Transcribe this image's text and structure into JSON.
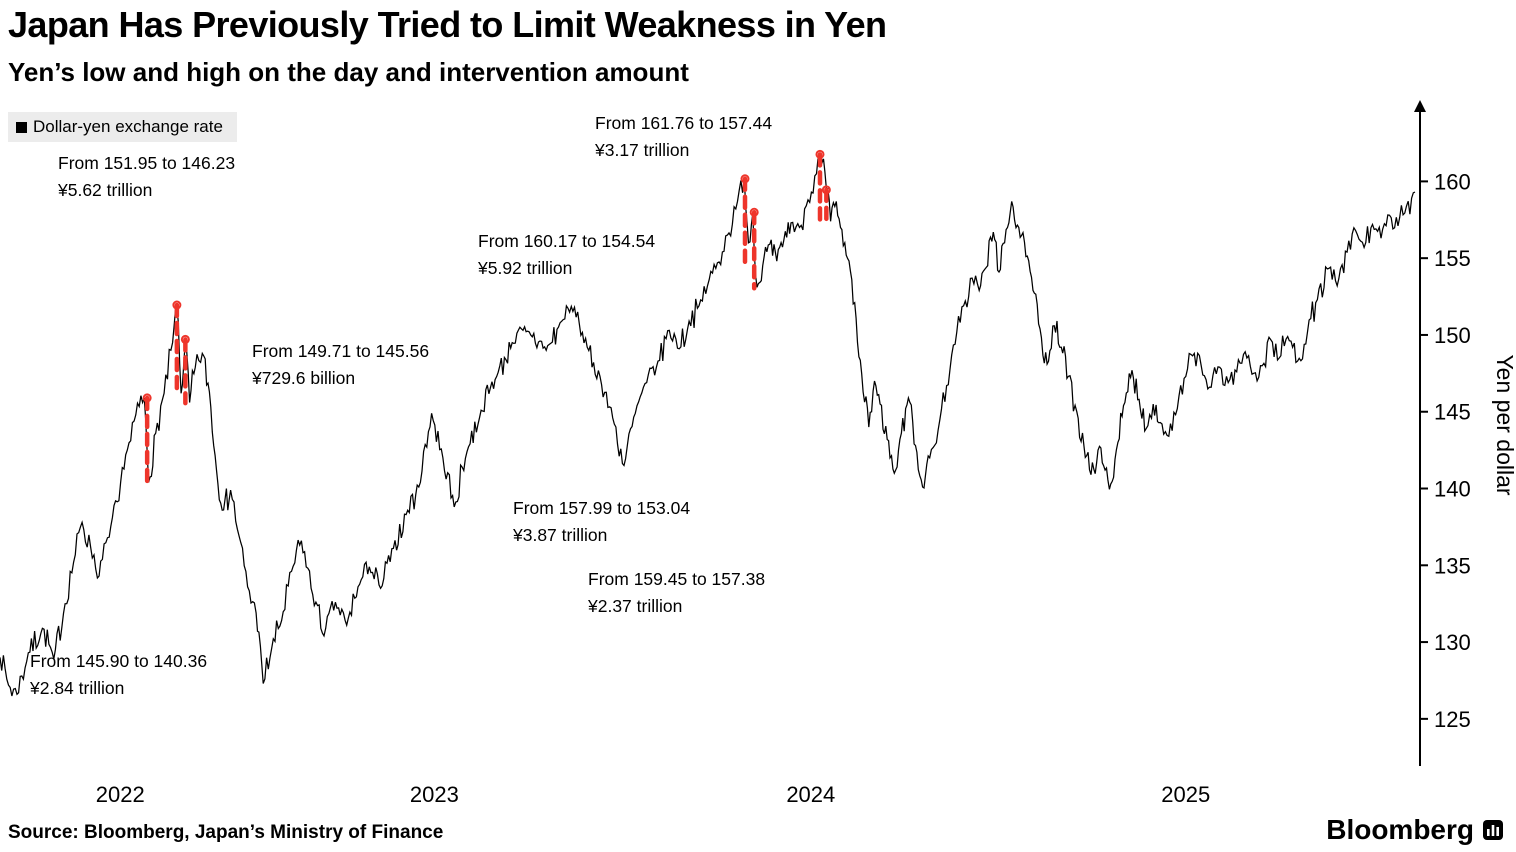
{
  "header": {
    "title": "Japan Has Previously Tried to Limit Weakness in Yen",
    "subtitle": "Yen’s low and high on the day and intervention amount"
  },
  "legend": {
    "label": "Dollar-yen exchange rate",
    "marker_color": "#000000"
  },
  "footer": {
    "source": "Source: Bloomberg, Japan’s Ministry of Finance",
    "brand": "Bloomberg"
  },
  "chart_data": {
    "type": "line",
    "title": "Japan Has Previously Tried to Limit Weakness in Yen",
    "subtitle": "Yen’s low and high on the day and intervention amount",
    "ylabel": "Yen per dollar",
    "ylim": [
      121.8,
      165.3
    ],
    "yticks": [
      125,
      130,
      135,
      140,
      145,
      150,
      155,
      160
    ],
    "xticks": [
      {
        "label": "2022",
        "f": 0.085
      },
      {
        "label": "2023",
        "f": 0.307
      },
      {
        "label": "2024",
        "f": 0.573
      },
      {
        "label": "2025",
        "f": 0.838
      }
    ],
    "grid": false,
    "legend_position": "top-left",
    "line_color": "#000000",
    "intervention_color": "#ee352b",
    "series": [
      {
        "name": "Dollar-yen exchange rate",
        "color": "#000000",
        "points": [
          [
            0,
            129.0
          ],
          [
            0.006,
            127.2
          ],
          [
            0.012,
            126.6
          ],
          [
            0.02,
            129.3
          ],
          [
            0.03,
            130.9
          ],
          [
            0.038,
            128.9
          ],
          [
            0.046,
            132.5
          ],
          [
            0.052,
            135.2
          ],
          [
            0.058,
            137.8
          ],
          [
            0.064,
            136.2
          ],
          [
            0.07,
            134.3
          ],
          [
            0.076,
            136.8
          ],
          [
            0.084,
            139.2
          ],
          [
            0.09,
            142.5
          ],
          [
            0.096,
            144.8
          ],
          [
            0.102,
            145.9
          ],
          [
            0.105,
            140.4
          ],
          [
            0.11,
            143.6
          ],
          [
            0.116,
            146.2
          ],
          [
            0.122,
            149.5
          ],
          [
            0.125,
            151.9
          ],
          [
            0.128,
            146.2
          ],
          [
            0.131,
            149.7
          ],
          [
            0.134,
            145.6
          ],
          [
            0.138,
            147.9
          ],
          [
            0.143,
            148.8
          ],
          [
            0.148,
            146.3
          ],
          [
            0.153,
            141.2
          ],
          [
            0.158,
            138.6
          ],
          [
            0.163,
            139.9
          ],
          [
            0.169,
            136.9
          ],
          [
            0.175,
            133.6
          ],
          [
            0.181,
            131.9
          ],
          [
            0.186,
            127.3
          ],
          [
            0.192,
            129.6
          ],
          [
            0.199,
            131.4
          ],
          [
            0.206,
            134.6
          ],
          [
            0.213,
            136.6
          ],
          [
            0.221,
            133.1
          ],
          [
            0.229,
            130.4
          ],
          [
            0.237,
            132.6
          ],
          [
            0.245,
            131.1
          ],
          [
            0.253,
            133.6
          ],
          [
            0.261,
            134.9
          ],
          [
            0.269,
            133.5
          ],
          [
            0.278,
            136.1
          ],
          [
            0.287,
            138.3
          ],
          [
            0.296,
            140.1
          ],
          [
            0.305,
            144.9
          ],
          [
            0.313,
            142.0
          ],
          [
            0.321,
            138.8
          ],
          [
            0.33,
            142.4
          ],
          [
            0.34,
            145.1
          ],
          [
            0.351,
            147.3
          ],
          [
            0.362,
            149.5
          ],
          [
            0.374,
            150.2
          ],
          [
            0.386,
            149.0
          ],
          [
            0.398,
            151.0
          ],
          [
            0.406,
            151.8
          ],
          [
            0.415,
            149.2
          ],
          [
            0.424,
            147.3
          ],
          [
            0.433,
            144.6
          ],
          [
            0.441,
            141.5
          ],
          [
            0.449,
            144.9
          ],
          [
            0.457,
            146.9
          ],
          [
            0.465,
            148.3
          ],
          [
            0.473,
            150.3
          ],
          [
            0.48,
            149.1
          ],
          [
            0.487,
            150.9
          ],
          [
            0.494,
            151.9
          ],
          [
            0.5,
            153.2
          ],
          [
            0.507,
            154.7
          ],
          [
            0.514,
            156.5
          ],
          [
            0.52,
            158.2
          ],
          [
            0.526,
            160.2
          ],
          [
            0.529,
            156.0
          ],
          [
            0.532,
            157.9
          ],
          [
            0.535,
            153.1
          ],
          [
            0.539,
            154.5
          ],
          [
            0.544,
            155.9
          ],
          [
            0.549,
            154.8
          ],
          [
            0.554,
            156.2
          ],
          [
            0.559,
            157.3
          ],
          [
            0.565,
            157.0
          ],
          [
            0.571,
            158.8
          ],
          [
            0.577,
            160.5
          ],
          [
            0.58,
            161.8
          ],
          [
            0.584,
            159.5
          ],
          [
            0.587,
            157.4
          ],
          [
            0.591,
            158.7
          ],
          [
            0.594,
            157.0
          ],
          [
            0.598,
            155.2
          ],
          [
            0.602,
            153.6
          ],
          [
            0.606,
            149.5
          ],
          [
            0.61,
            146.3
          ],
          [
            0.614,
            144.0
          ],
          [
            0.618,
            147.0
          ],
          [
            0.622,
            145.5
          ],
          [
            0.627,
            143.2
          ],
          [
            0.632,
            141.0
          ],
          [
            0.637,
            143.6
          ],
          [
            0.642,
            145.9
          ],
          [
            0.647,
            142.8
          ],
          [
            0.652,
            140.1
          ],
          [
            0.657,
            142.0
          ],
          [
            0.663,
            143.8
          ],
          [
            0.669,
            146.7
          ],
          [
            0.675,
            149.4
          ],
          [
            0.681,
            151.9
          ],
          [
            0.687,
            153.7
          ],
          [
            0.692,
            152.9
          ],
          [
            0.697,
            154.4
          ],
          [
            0.702,
            156.7
          ],
          [
            0.706,
            154.1
          ],
          [
            0.71,
            156.0
          ],
          [
            0.715,
            158.7
          ],
          [
            0.72,
            157.0
          ],
          [
            0.725,
            155.1
          ],
          [
            0.73,
            152.9
          ],
          [
            0.735,
            150.4
          ],
          [
            0.74,
            148.1
          ],
          [
            0.745,
            150.6
          ],
          [
            0.75,
            149.2
          ],
          [
            0.755,
            147.3
          ],
          [
            0.761,
            145.0
          ],
          [
            0.766,
            142.8
          ],
          [
            0.771,
            140.9
          ],
          [
            0.776,
            142.5
          ],
          [
            0.781,
            141.2
          ],
          [
            0.785,
            140.3
          ],
          [
            0.79,
            143.0
          ],
          [
            0.795,
            145.6
          ],
          [
            0.8,
            147.7
          ],
          [
            0.805,
            145.8
          ],
          [
            0.81,
            143.9
          ],
          [
            0.815,
            145.5
          ],
          [
            0.82,
            144.3
          ],
          [
            0.826,
            143.4
          ],
          [
            0.832,
            145.2
          ],
          [
            0.838,
            147.3
          ],
          [
            0.844,
            148.8
          ],
          [
            0.85,
            147.4
          ],
          [
            0.856,
            146.6
          ],
          [
            0.862,
            147.9
          ],
          [
            0.868,
            146.9
          ],
          [
            0.874,
            147.6
          ],
          [
            0.88,
            148.9
          ],
          [
            0.886,
            147.5
          ],
          [
            0.892,
            148.0
          ],
          [
            0.898,
            149.7
          ],
          [
            0.904,
            148.5
          ],
          [
            0.91,
            149.9
          ],
          [
            0.917,
            148.3
          ],
          [
            0.924,
            150.2
          ],
          [
            0.931,
            152.3
          ],
          [
            0.938,
            154.3
          ],
          [
            0.945,
            153.2
          ],
          [
            0.952,
            155.4
          ],
          [
            0.958,
            156.8
          ],
          [
            0.964,
            155.7
          ],
          [
            0.97,
            157.2
          ],
          [
            0.976,
            156.3
          ],
          [
            0.982,
            157.8
          ],
          [
            0.988,
            157.1
          ],
          [
            0.994,
            158.4
          ],
          [
            1,
            159.3
          ]
        ]
      }
    ],
    "interventions": [
      {
        "f": 0.104,
        "from": 145.9,
        "to": 140.36,
        "amount": "¥2.84 trillion"
      },
      {
        "f": 0.125,
        "from": 151.95,
        "to": 146.23,
        "amount": "¥5.62 trillion"
      },
      {
        "f": 0.131,
        "from": 149.71,
        "to": 145.56,
        "amount": "¥729.6 billion"
      },
      {
        "f": 0.5265,
        "from": 160.17,
        "to": 154.54,
        "amount": "¥5.92 trillion"
      },
      {
        "f": 0.533,
        "from": 157.99,
        "to": 153.04,
        "amount": "¥3.87 trillion"
      },
      {
        "f": 0.5795,
        "from": 161.76,
        "to": 157.44,
        "amount": "¥3.17 trillion"
      },
      {
        "f": 0.584,
        "from": 159.45,
        "to": 157.38,
        "amount": "¥2.37 trillion"
      }
    ],
    "annotations": [
      {
        "range": "From 151.95 to 146.23",
        "amount": "¥5.62 trillion"
      },
      {
        "range": "From 161.76 to 157.44",
        "amount": "¥3.17 trillion"
      },
      {
        "range": "From 160.17 to 154.54",
        "amount": "¥5.92 trillion"
      },
      {
        "range": "From 149.71 to 145.56",
        "amount": "¥729.6 billion"
      },
      {
        "range": "From 157.99 to 153.04",
        "amount": "¥3.87 trillion"
      },
      {
        "range": "From 159.45 to 157.38",
        "amount": "¥2.37 trillion"
      },
      {
        "range": "From 145.90 to 140.36",
        "amount": "¥2.84 trillion"
      }
    ]
  }
}
